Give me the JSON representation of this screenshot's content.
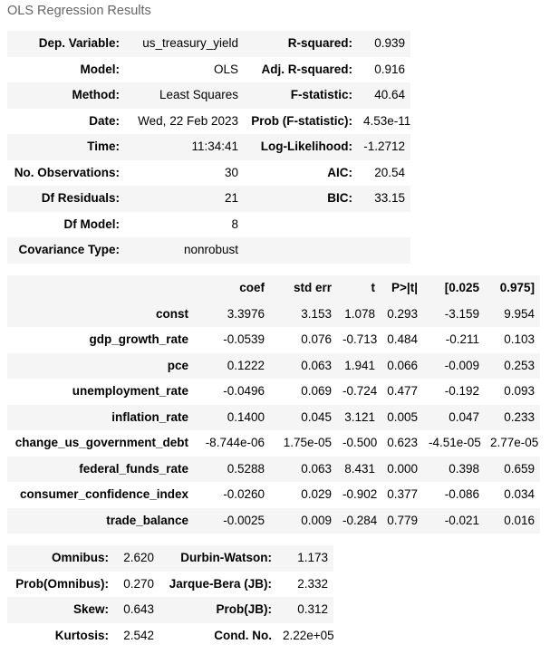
{
  "caption": "OLS Regression Results",
  "summary": {
    "rows": [
      {
        "l1": "Dep. Variable:",
        "v1": "us_treasury_yield",
        "l2": "R-squared:",
        "v2": "0.939"
      },
      {
        "l1": "Model:",
        "v1": "OLS",
        "l2": "Adj. R-squared:",
        "v2": "0.916"
      },
      {
        "l1": "Method:",
        "v1": "Least Squares",
        "l2": "F-statistic:",
        "v2": "40.64"
      },
      {
        "l1": "Date:",
        "v1": "Wed, 22 Feb 2023",
        "l2": "Prob (F-statistic):",
        "v2": "4.53e-11"
      },
      {
        "l1": "Time:",
        "v1": "11:34:41",
        "l2": "Log-Likelihood:",
        "v2": "-1.2712"
      },
      {
        "l1": "No. Observations:",
        "v1": "30",
        "l2": "AIC:",
        "v2": "20.54"
      },
      {
        "l1": "Df Residuals:",
        "v1": "21",
        "l2": "BIC:",
        "v2": "33.15"
      },
      {
        "l1": "Df Model:",
        "v1": "8",
        "l2": "",
        "v2": ""
      },
      {
        "l1": "Covariance Type:",
        "v1": "nonrobust",
        "l2": "",
        "v2": ""
      }
    ]
  },
  "coefficients": {
    "headers": [
      "",
      "coef",
      "std err",
      "t",
      "P>|t|",
      "[0.025",
      "0.975]"
    ],
    "rows": [
      [
        "const",
        "3.3976",
        "3.153",
        "1.078",
        "0.293",
        "-3.159",
        "9.954"
      ],
      [
        "gdp_growth_rate",
        "-0.0539",
        "0.076",
        "-0.713",
        "0.484",
        "-0.211",
        "0.103"
      ],
      [
        "pce",
        "0.1222",
        "0.063",
        "1.941",
        "0.066",
        "-0.009",
        "0.253"
      ],
      [
        "unemployment_rate",
        "-0.0496",
        "0.069",
        "-0.724",
        "0.477",
        "-0.192",
        "0.093"
      ],
      [
        "inflation_rate",
        "0.1400",
        "0.045",
        "3.121",
        "0.005",
        "0.047",
        "0.233"
      ],
      [
        "change_us_government_debt",
        "-8.744e-06",
        "1.75e-05",
        "-0.500",
        "0.623",
        "-4.51e-05",
        "2.77e-05"
      ],
      [
        "federal_funds_rate",
        "0.5288",
        "0.063",
        "8.431",
        "0.000",
        "0.398",
        "0.659"
      ],
      [
        "consumer_confidence_index",
        "-0.0260",
        "0.029",
        "-0.902",
        "0.377",
        "-0.086",
        "0.034"
      ],
      [
        "trade_balance",
        "-0.0025",
        "0.009",
        "-0.284",
        "0.779",
        "-0.021",
        "0.016"
      ]
    ]
  },
  "diagnostics": {
    "rows": [
      {
        "l1": "Omnibus:",
        "v1": "2.620",
        "l2": "Durbin-Watson:",
        "v2": "1.173"
      },
      {
        "l1": "Prob(Omnibus):",
        "v1": "0.270",
        "l2": "Jarque-Bera (JB):",
        "v2": "2.332"
      },
      {
        "l1": "Skew:",
        "v1": "0.643",
        "l2": "Prob(JB):",
        "v2": "0.312"
      },
      {
        "l1": "Kurtosis:",
        "v1": "2.542",
        "l2": "Cond. No.",
        "v2": "2.22e+05"
      }
    ]
  }
}
